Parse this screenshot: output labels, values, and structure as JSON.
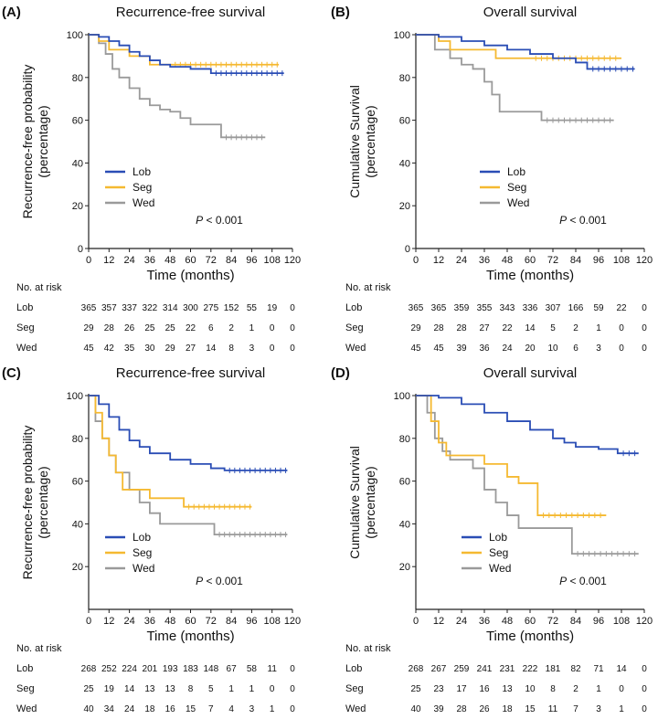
{
  "chart_data": [
    {
      "type": "line",
      "panel_label": "(A)",
      "title": "Recurrence-free survival",
      "xlabel": "Time (months)",
      "ylabel": [
        "Recurrence-free probability",
        "(percentage)"
      ],
      "xlim": [
        0,
        120
      ],
      "ylim": [
        0,
        100
      ],
      "xticks": [
        0,
        12,
        24,
        36,
        48,
        60,
        72,
        84,
        96,
        108,
        120
      ],
      "yticks": [
        0,
        20,
        40,
        60,
        80,
        100
      ],
      "p_value": [
        "P",
        " < 0.001"
      ],
      "legend_position": "lower-left",
      "series": [
        {
          "name": "Lob",
          "color": "#2a4db5",
          "points": [
            [
              0,
              100
            ],
            [
              6,
              99
            ],
            [
              12,
              97
            ],
            [
              18,
              95
            ],
            [
              24,
              92
            ],
            [
              30,
              90
            ],
            [
              36,
              88
            ],
            [
              42,
              86
            ],
            [
              48,
              85
            ],
            [
              60,
              84
            ],
            [
              72,
              82
            ],
            [
              115,
              82
            ]
          ]
        },
        {
          "name": "Seg",
          "color": "#f5b931",
          "points": [
            [
              0,
              100
            ],
            [
              6,
              97
            ],
            [
              12,
              93
            ],
            [
              24,
              90
            ],
            [
              36,
              86
            ],
            [
              48,
              86
            ],
            [
              112,
              86
            ]
          ]
        },
        {
          "name": "Wed",
          "color": "#9a9a9a",
          "points": [
            [
              0,
              100
            ],
            [
              6,
              96
            ],
            [
              10,
              91
            ],
            [
              14,
              84
            ],
            [
              18,
              80
            ],
            [
              24,
              75
            ],
            [
              30,
              70
            ],
            [
              36,
              67
            ],
            [
              42,
              65
            ],
            [
              48,
              64
            ],
            [
              54,
              61
            ],
            [
              60,
              58
            ],
            [
              72,
              58
            ],
            [
              78,
              52
            ],
            [
              104,
              52
            ]
          ]
        }
      ],
      "risk_table": {
        "title": "No. at risk",
        "rows": [
          {
            "name": "Lob",
            "values": [
              365,
              357,
              337,
              322,
              314,
              300,
              275,
              152,
              55,
              19,
              0
            ]
          },
          {
            "name": "Seg",
            "values": [
              29,
              28,
              26,
              25,
              25,
              22,
              6,
              2,
              1,
              0,
              0
            ]
          },
          {
            "name": "Wed",
            "values": [
              45,
              42,
              35,
              30,
              29,
              27,
              14,
              8,
              3,
              0,
              0
            ]
          }
        ]
      }
    },
    {
      "type": "line",
      "panel_label": "(B)",
      "title": "Overall survival",
      "xlabel": "Time (months)",
      "ylabel": [
        "Cumulative Survival",
        "(percentage)"
      ],
      "xlim": [
        0,
        120
      ],
      "ylim": [
        0,
        100
      ],
      "xticks": [
        0,
        12,
        24,
        36,
        48,
        60,
        72,
        84,
        96,
        108,
        120
      ],
      "yticks": [
        0,
        20,
        40,
        60,
        80,
        100
      ],
      "p_value": [
        "P",
        " < 0.001"
      ],
      "legend_position": "lower-left",
      "series": [
        {
          "name": "Lob",
          "color": "#2a4db5",
          "points": [
            [
              0,
              100
            ],
            [
              12,
              99
            ],
            [
              24,
              97
            ],
            [
              36,
              95
            ],
            [
              48,
              93
            ],
            [
              60,
              91
            ],
            [
              72,
              89
            ],
            [
              84,
              87
            ],
            [
              90,
              84
            ],
            [
              115,
              84
            ]
          ]
        },
        {
          "name": "Seg",
          "color": "#f5b931",
          "points": [
            [
              0,
              100
            ],
            [
              12,
              97
            ],
            [
              18,
              93
            ],
            [
              36,
              93
            ],
            [
              42,
              89
            ],
            [
              60,
              89
            ],
            [
              108,
              89
            ]
          ]
        },
        {
          "name": "Wed",
          "color": "#9a9a9a",
          "points": [
            [
              0,
              100
            ],
            [
              10,
              93
            ],
            [
              18,
              89
            ],
            [
              24,
              86
            ],
            [
              30,
              84
            ],
            [
              36,
              78
            ],
            [
              40,
              72
            ],
            [
              44,
              64
            ],
            [
              60,
              64
            ],
            [
              66,
              60
            ],
            [
              104,
              60
            ]
          ]
        }
      ],
      "risk_table": {
        "title": "No. at risk",
        "rows": [
          {
            "name": "Lob",
            "values": [
              365,
              365,
              359,
              355,
              343,
              336,
              307,
              166,
              59,
              22,
              0
            ]
          },
          {
            "name": "Seg",
            "values": [
              29,
              28,
              28,
              27,
              22,
              14,
              5,
              2,
              1,
              0,
              0
            ]
          },
          {
            "name": "Wed",
            "values": [
              45,
              45,
              39,
              36,
              24,
              20,
              10,
              6,
              3,
              0,
              0
            ]
          }
        ]
      }
    },
    {
      "type": "line",
      "panel_label": "(C)",
      "title": "Recurrence-free survival",
      "xlabel": "Time (months)",
      "ylabel": [
        "Recurrence-free probability",
        "(percentage)"
      ],
      "xlim": [
        0,
        120
      ],
      "ylim": [
        0,
        100
      ],
      "xticks": [
        0,
        12,
        24,
        36,
        48,
        60,
        72,
        84,
        96,
        108,
        120
      ],
      "yticks": [
        20,
        40,
        60,
        80,
        100
      ],
      "p_value": [
        "P",
        " < 0.001"
      ],
      "legend_position": "lower-left",
      "series": [
        {
          "name": "Lob",
          "color": "#2a4db5",
          "points": [
            [
              0,
              100
            ],
            [
              6,
              96
            ],
            [
              12,
              90
            ],
            [
              18,
              84
            ],
            [
              24,
              79
            ],
            [
              30,
              76
            ],
            [
              36,
              73
            ],
            [
              48,
              70
            ],
            [
              60,
              68
            ],
            [
              72,
              66
            ],
            [
              80,
              65
            ],
            [
              117,
              65
            ]
          ]
        },
        {
          "name": "Seg",
          "color": "#f5b931",
          "points": [
            [
              0,
              100
            ],
            [
              4,
              92
            ],
            [
              8,
              80
            ],
            [
              12,
              72
            ],
            [
              16,
              64
            ],
            [
              20,
              56
            ],
            [
              30,
              56
            ],
            [
              36,
              52
            ],
            [
              54,
              52
            ],
            [
              56,
              48
            ],
            [
              96,
              48
            ]
          ]
        },
        {
          "name": "Wed",
          "color": "#9a9a9a",
          "points": [
            [
              0,
              100
            ],
            [
              4,
              88
            ],
            [
              8,
              80
            ],
            [
              12,
              72
            ],
            [
              16,
              64
            ],
            [
              24,
              56
            ],
            [
              30,
              50
            ],
            [
              36,
              45
            ],
            [
              42,
              40
            ],
            [
              72,
              40
            ],
            [
              74,
              35
            ],
            [
              117,
              35
            ]
          ]
        }
      ],
      "risk_table": {
        "title": "No. at risk",
        "rows": [
          {
            "name": "Lob",
            "values": [
              268,
              252,
              224,
              201,
              193,
              183,
              148,
              67,
              58,
              11,
              0
            ]
          },
          {
            "name": "Seg",
            "values": [
              25,
              19,
              14,
              13,
              13,
              8,
              5,
              1,
              1,
              0,
              0
            ]
          },
          {
            "name": "Wed",
            "values": [
              40,
              34,
              24,
              18,
              16,
              15,
              7,
              4,
              3,
              1,
              0
            ]
          }
        ]
      }
    },
    {
      "type": "line",
      "panel_label": "(D)",
      "title": "Overall survival",
      "xlabel": "Time (months)",
      "ylabel": [
        "Cumulative Survival",
        "(percentage)"
      ],
      "xlim": [
        0,
        120
      ],
      "ylim": [
        0,
        100
      ],
      "xticks": [
        0,
        12,
        24,
        36,
        48,
        60,
        72,
        84,
        96,
        108,
        120
      ],
      "yticks": [
        20,
        40,
        60,
        80,
        100
      ],
      "p_value": [
        "P",
        " < 0.001"
      ],
      "legend_position": "lower-left",
      "series": [
        {
          "name": "Lob",
          "color": "#2a4db5",
          "points": [
            [
              0,
              100
            ],
            [
              12,
              99
            ],
            [
              24,
              96
            ],
            [
              36,
              92
            ],
            [
              48,
              88
            ],
            [
              60,
              84
            ],
            [
              72,
              80
            ],
            [
              78,
              78
            ],
            [
              84,
              76
            ],
            [
              96,
              75
            ],
            [
              106,
              73
            ],
            [
              117,
              73
            ]
          ]
        },
        {
          "name": "Seg",
          "color": "#f5b931",
          "points": [
            [
              0,
              100
            ],
            [
              8,
              88
            ],
            [
              12,
              78
            ],
            [
              16,
              72
            ],
            [
              24,
              72
            ],
            [
              36,
              68
            ],
            [
              48,
              62
            ],
            [
              54,
              59
            ],
            [
              62,
              59
            ],
            [
              64,
              44
            ],
            [
              100,
              44
            ]
          ]
        },
        {
          "name": "Wed",
          "color": "#9a9a9a",
          "points": [
            [
              0,
              100
            ],
            [
              6,
              92
            ],
            [
              10,
              80
            ],
            [
              14,
              74
            ],
            [
              18,
              70
            ],
            [
              30,
              66
            ],
            [
              36,
              56
            ],
            [
              42,
              50
            ],
            [
              48,
              44
            ],
            [
              54,
              38
            ],
            [
              72,
              38
            ],
            [
              82,
              26
            ],
            [
              117,
              26
            ]
          ]
        }
      ],
      "risk_table": {
        "title": "No. at risk",
        "rows": [
          {
            "name": "Lob",
            "values": [
              268,
              267,
              259,
              241,
              231,
              222,
              181,
              82,
              71,
              14,
              0
            ]
          },
          {
            "name": "Seg",
            "values": [
              25,
              23,
              17,
              16,
              13,
              10,
              8,
              2,
              1,
              0,
              0
            ]
          },
          {
            "name": "Wed",
            "values": [
              40,
              39,
              28,
              26,
              18,
              15,
              11,
              7,
              3,
              1,
              0
            ]
          }
        ]
      }
    }
  ]
}
